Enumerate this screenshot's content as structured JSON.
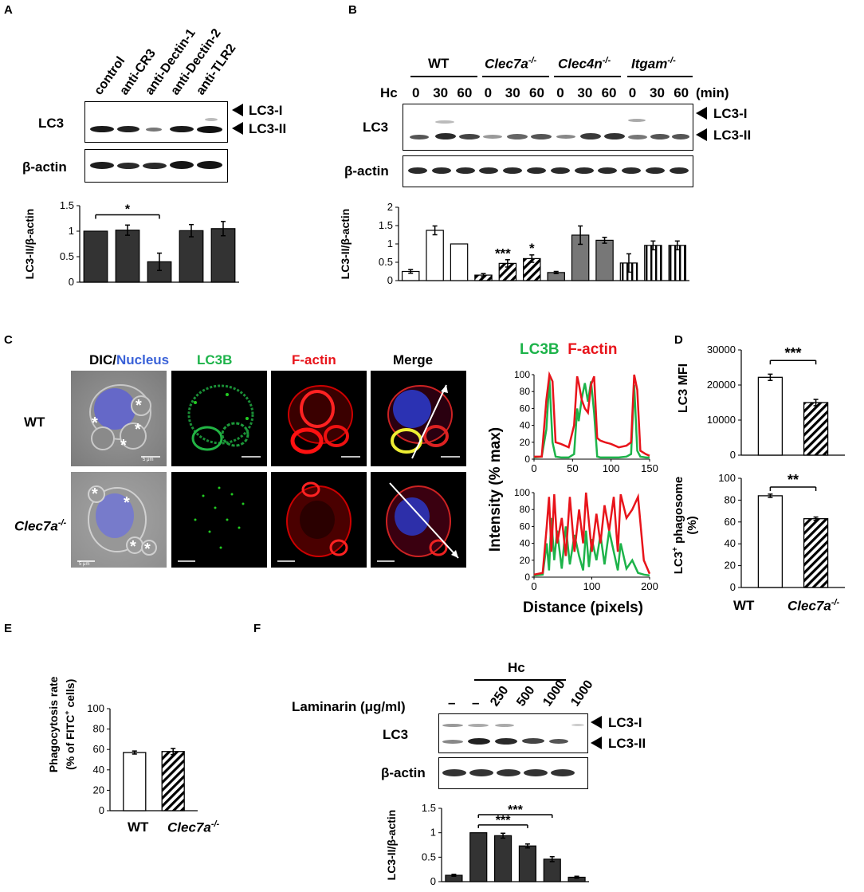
{
  "panels": {
    "A": "A",
    "B": "B",
    "C": "C",
    "D": "D",
    "E": "E",
    "F": "F"
  },
  "A": {
    "lanes": [
      "control",
      "anti-CR3",
      "anti-Dectin-1",
      "anti-Dectin-2",
      "anti-TLR2"
    ],
    "lc3": "LC3",
    "actin": "β-actin",
    "lc3i": "LC3-I",
    "lc3ii": "LC3-II",
    "star": "*"
  },
  "B": {
    "groups": [
      {
        "name": "WT",
        "sup": ""
      },
      {
        "name": "Clec7a",
        "sup": "-/-"
      },
      {
        "name": "Clec4n",
        "sup": "-/-"
      },
      {
        "name": "Itgam",
        "sup": "-/-"
      }
    ],
    "hc": "Hc",
    "times": [
      "0",
      "30",
      "60",
      "0",
      "30",
      "60",
      "0",
      "30",
      "60",
      "0",
      "30",
      "60"
    ],
    "unit": "(min)",
    "lc3": "LC3",
    "actin": "β-actin",
    "lc3i": "LC3-I",
    "lc3ii": "LC3-II",
    "star1": "***",
    "star2": "*"
  },
  "C": {
    "col_dic": "DIC/",
    "col_nucleus": "Nucleus",
    "col_lc3b": "LC3B",
    "col_factin": "F-actin",
    "col_merge": "Merge",
    "row_wt": "WT",
    "row_ko": "Clec7a",
    "row_ko_sup": "-/-",
    "scale_wt": "5 μm",
    "scale_ko": "5 μm",
    "plot_title_green": "LC3B",
    "plot_title_red": "F-actin",
    "ylabel": "Intensity (% max)",
    "xlabel": "Distance (pixels)",
    "colors": {
      "dapi": "#3a62d8",
      "green": "#1db34a",
      "red": "#e8141b"
    }
  },
  "D": {
    "ylabel_top": "LC3 MFI",
    "ylabel_bottom_1": "LC3",
    "ylabel_bottom_sup": "+",
    "ylabel_bottom_2": " phagosome",
    "ylabel_bottom_3": "(%)",
    "star_top": "***",
    "star_bottom": "**",
    "x_wt": "WT",
    "x_ko": "Clec7a",
    "x_ko_sup": "-/-"
  },
  "E": {
    "ylabel_1": "Phagocytosis rate",
    "ylabel_2a": "(% of FITC",
    "ylabel_2sup": "+",
    "ylabel_2b": " cells)",
    "x_wt": "WT",
    "x_ko": "Clec7a",
    "x_ko_sup": "-/-"
  },
  "F": {
    "hc": "Hc",
    "laminarin": "Laminarin (μg/ml)",
    "doses": [
      "–",
      "–",
      "250",
      "500",
      "1000",
      "1000"
    ],
    "lc3": "LC3",
    "actin": "β-actin",
    "lc3i": "LC3-I",
    "lc3ii": "LC3-II",
    "star1": "***",
    "star2": "***"
  },
  "chart_data": [
    {
      "panel": "A",
      "type": "bar",
      "categories": [
        "control",
        "anti-CR3",
        "anti-Dectin-1",
        "anti-Dectin-2",
        "anti-TLR2"
      ],
      "values": [
        1.0,
        1.02,
        0.4,
        1.01,
        1.05
      ],
      "errors": [
        0.0,
        0.1,
        0.17,
        0.12,
        0.14
      ],
      "ylabel": "LC3-II/β-actin",
      "ylim": [
        0,
        1.5
      ],
      "yticks": [
        0,
        0.5,
        1,
        1.5
      ],
      "annotations": [
        {
          "text": "*",
          "from": 0,
          "to": 2
        }
      ]
    },
    {
      "panel": "B",
      "type": "bar",
      "categories": [
        "WT 0",
        "WT 30",
        "WT 60",
        "Clec7a 0",
        "Clec7a 30",
        "Clec7a 60",
        "Clec4n 0",
        "Clec4n 30",
        "Clec4n 60",
        "Itgam 0",
        "Itgam 30",
        "Itgam 60"
      ],
      "values": [
        0.25,
        1.37,
        1.0,
        0.15,
        0.47,
        0.6,
        0.22,
        1.24,
        1.1,
        0.48,
        0.96,
        0.96
      ],
      "errors": [
        0.05,
        0.12,
        0.0,
        0.04,
        0.1,
        0.1,
        0.03,
        0.25,
        0.08,
        0.25,
        0.12,
        0.12
      ],
      "ylabel": "LC3-II/β-actin",
      "ylim": [
        0,
        2
      ],
      "yticks": [
        0,
        0.5,
        1,
        1.5,
        2
      ],
      "annotations": [
        {
          "text": "***",
          "bar": 4
        },
        {
          "text": "*",
          "bar": 5
        }
      ]
    },
    {
      "panel": "C-WT",
      "type": "line",
      "series": [
        {
          "name": "LC3B",
          "color": "#1db34a",
          "x": [
            0,
            10,
            16,
            20,
            24,
            28,
            35,
            45,
            52,
            56,
            58,
            62,
            66,
            70,
            74,
            78,
            82,
            86,
            92,
            100,
            110,
            120,
            126,
            130,
            134,
            138,
            145,
            150
          ],
          "y": [
            2,
            3,
            35,
            95,
            20,
            3,
            2,
            2,
            6,
            60,
            45,
            72,
            90,
            68,
            92,
            55,
            3,
            2,
            2,
            2,
            2,
            3,
            6,
            88,
            10,
            3,
            2,
            2
          ]
        },
        {
          "name": "F-actin",
          "color": "#e8141b",
          "x": [
            0,
            10,
            16,
            20,
            24,
            28,
            35,
            45,
            52,
            56,
            58,
            62,
            66,
            70,
            74,
            78,
            82,
            86,
            92,
            100,
            110,
            120,
            126,
            130,
            134,
            138,
            145,
            150
          ],
          "y": [
            3,
            3,
            70,
            100,
            92,
            20,
            18,
            14,
            40,
            98,
            90,
            70,
            60,
            55,
            88,
            98,
            25,
            22,
            20,
            18,
            14,
            16,
            20,
            100,
            82,
            10,
            6,
            4
          ]
        }
      ],
      "xlim": [
        0,
        150
      ],
      "ylim": [
        0,
        100
      ],
      "xticks": [
        0,
        50,
        100,
        150
      ],
      "yticks": [
        0,
        20,
        40,
        60,
        80,
        100
      ]
    },
    {
      "panel": "C-KO",
      "type": "line",
      "series": [
        {
          "name": "LC3B",
          "color": "#1db34a",
          "x": [
            0,
            15,
            22,
            26,
            30,
            35,
            40,
            48,
            55,
            62,
            70,
            78,
            85,
            90,
            95,
            100,
            108,
            115,
            122,
            130,
            138,
            145,
            150,
            160,
            170,
            180,
            190,
            200
          ],
          "y": [
            2,
            3,
            40,
            8,
            70,
            20,
            55,
            10,
            60,
            15,
            50,
            25,
            8,
            55,
            12,
            45,
            20,
            50,
            15,
            55,
            30,
            8,
            40,
            10,
            20,
            5,
            3,
            2
          ]
        },
        {
          "name": "F-actin",
          "color": "#e8141b",
          "x": [
            0,
            15,
            22,
            26,
            30,
            35,
            40,
            48,
            55,
            62,
            70,
            78,
            85,
            90,
            95,
            100,
            108,
            115,
            122,
            130,
            138,
            145,
            150,
            160,
            170,
            180,
            190,
            200
          ],
          "y": [
            3,
            5,
            60,
            95,
            30,
            98,
            40,
            70,
            25,
            95,
            30,
            80,
            40,
            100,
            65,
            30,
            75,
            40,
            85,
            55,
            95,
            30,
            98,
            70,
            80,
            95,
            20,
            4
          ]
        }
      ],
      "xlim": [
        0,
        200
      ],
      "ylim": [
        0,
        100
      ],
      "xticks": [
        0,
        100,
        200
      ],
      "yticks": [
        0,
        20,
        40,
        60,
        80,
        100
      ]
    },
    {
      "panel": "D-top",
      "type": "bar",
      "categories": [
        "WT",
        "Clec7a-/-"
      ],
      "values": [
        22200,
        15000
      ],
      "errors": [
        900,
        900
      ],
      "ylabel": "LC3 MFI",
      "ylim": [
        0,
        30000
      ],
      "yticks": [
        0,
        10000,
        20000,
        30000
      ],
      "annotations": [
        {
          "text": "***",
          "from": 0,
          "to": 1
        }
      ]
    },
    {
      "panel": "D-bottom",
      "type": "bar",
      "categories": [
        "WT",
        "Clec7a-/-"
      ],
      "values": [
        84,
        63
      ],
      "errors": [
        1.5,
        1.5
      ],
      "ylabel": "LC3+ phagosome (%)",
      "ylim": [
        0,
        100
      ],
      "yticks": [
        0,
        20,
        40,
        60,
        80,
        100
      ],
      "annotations": [
        {
          "text": "**",
          "from": 0,
          "to": 1
        }
      ]
    },
    {
      "panel": "E",
      "type": "bar",
      "categories": [
        "WT",
        "Clec7a-/-"
      ],
      "values": [
        57,
        58
      ],
      "errors": [
        1.5,
        3
      ],
      "ylabel": "Phagocytosis rate (% of FITC+ cells)",
      "ylim": [
        0,
        100
      ],
      "yticks": [
        0,
        20,
        40,
        60,
        80,
        100
      ]
    },
    {
      "panel": "F",
      "type": "bar",
      "categories": [
        "–",
        "Hc",
        "Hc+250",
        "Hc+500",
        "Hc+1000",
        "1000"
      ],
      "values": [
        0.13,
        1.0,
        0.94,
        0.73,
        0.46,
        0.09
      ],
      "errors": [
        0.02,
        0.0,
        0.05,
        0.04,
        0.05,
        0.02
      ],
      "ylabel": "LC3-II/β-actin",
      "ylim": [
        0,
        1.5
      ],
      "yticks": [
        0,
        0.5,
        1,
        1.5
      ],
      "annotations": [
        {
          "text": "***",
          "from": 1,
          "to": 3
        },
        {
          "text": "***",
          "from": 1,
          "to": 4
        }
      ]
    }
  ]
}
